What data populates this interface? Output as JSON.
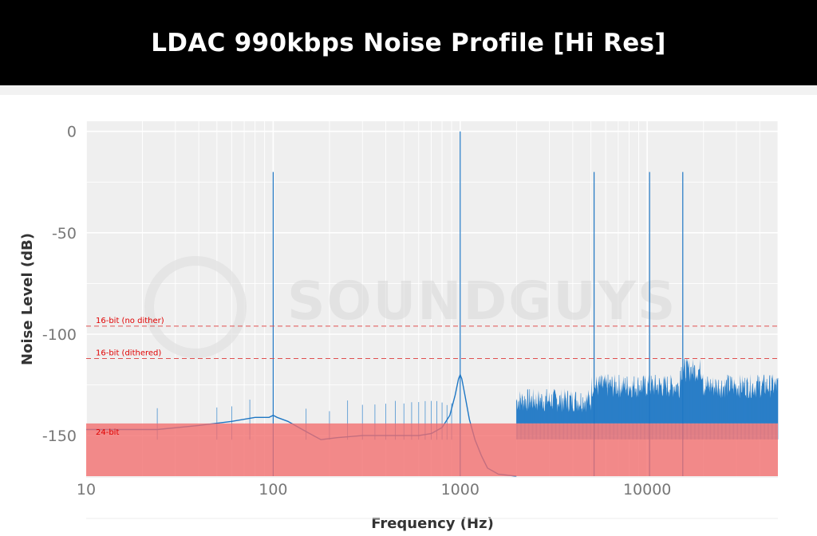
{
  "chart_data": {
    "type": "line",
    "title": "LDAC 990kbps Noise Profile [Hi Res]",
    "xlabel": "Frequency (Hz)",
    "ylabel": "Noise Level (dB)",
    "x_scale": "log",
    "xlim": [
      10,
      50000
    ],
    "ylim": [
      -170,
      5
    ],
    "x_ticks": [
      10,
      100,
      1000,
      10000
    ],
    "x_tick_labels": [
      "10",
      "100",
      "1000",
      "10000"
    ],
    "y_ticks": [
      0,
      -50,
      -100,
      -150
    ],
    "y_tick_labels": [
      "0",
      "-50",
      "-100",
      "-150"
    ],
    "grid": true,
    "series": [
      {
        "color": "#1f77c4",
        "x": [
          10,
          24,
          40,
          60,
          80,
          95,
          100,
          105,
          120,
          150,
          180,
          220,
          300,
          400,
          500,
          600,
          700,
          800,
          880,
          940,
          980,
          1000,
          1020,
          1060,
          1120,
          1200,
          1300,
          1400,
          1600,
          2000
        ],
        "y": [
          -147,
          -147,
          -145,
          -143,
          -141,
          -141,
          -140,
          -141,
          -143,
          -148,
          -152,
          -151,
          -150,
          -150,
          -150,
          -150,
          -149,
          -146,
          -140,
          -130,
          -122,
          -120,
          -122,
          -130,
          -142,
          -152,
          -160,
          -166,
          -169,
          -170
        ]
      }
    ],
    "tones": [
      {
        "freq": 100,
        "level": -20
      },
      {
        "freq": 1000,
        "level": 0
      },
      {
        "freq": 5200,
        "level": -20
      },
      {
        "freq": 10300,
        "level": -20
      },
      {
        "freq": 15500,
        "level": -20
      }
    ],
    "reference_lines": [
      {
        "label": "16-bit (no dither)",
        "y": -96,
        "color": "#e05050"
      },
      {
        "label": "16-bit (dithered)",
        "y": -112,
        "color": "#e05050"
      },
      {
        "label": "24-bit",
        "y": -144,
        "color": "#f26b6b"
      }
    ],
    "noise_floor": {
      "segments": [
        {
          "x_from": 2000,
          "x_to": 5000,
          "y_top": -135
        },
        {
          "x_from": 5000,
          "x_to": 15000,
          "y_top": -128
        },
        {
          "x_from": 15000,
          "x_to": 20000,
          "y_top": -120
        },
        {
          "x_from": 20000,
          "x_to": 50000,
          "y_top": -128
        }
      ]
    }
  },
  "watermark": "SOUNDGUYS"
}
